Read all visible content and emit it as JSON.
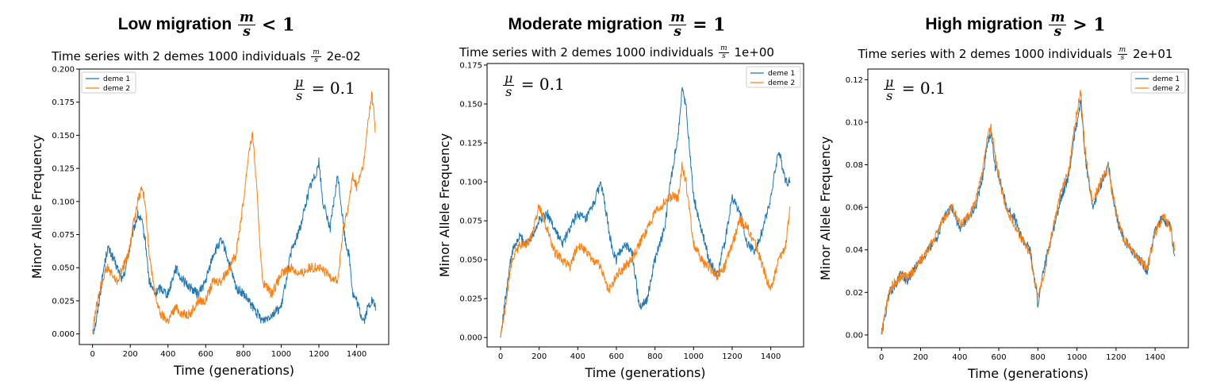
{
  "panels": [
    {
      "title": "Low migration",
      "title_op": "< 1",
      "subtitle_pre": "Time series with 2 demes 1000 individuals",
      "subtitle_val": "2e-02",
      "annotation_val": "= 0.1"
    },
    {
      "title": "Moderate migration",
      "title_op": "= 1",
      "subtitle_pre": "Time series with 2 demes 1000 individuals",
      "subtitle_val": "1e+00",
      "annotation_val": "= 0.1"
    },
    {
      "title": "High migration",
      "title_op": "> 1",
      "subtitle_pre": "Time series with 2 demes 1000 individuals",
      "subtitle_val": "2e+01",
      "annotation_val": "= 0.1"
    }
  ],
  "symbols": {
    "m": "m",
    "s": "s",
    "mu": "μ"
  },
  "colors": {
    "deme1": "#1f77b4",
    "deme2": "#ff7f0e"
  },
  "chart_data": [
    {
      "type": "line",
      "xlabel": "Time (generations)",
      "ylabel": "Minor Allele Frequency",
      "xlim": [
        -70,
        1570
      ],
      "ylim": [
        -0.008,
        0.2
      ],
      "xticks": [
        0,
        200,
        400,
        600,
        800,
        1000,
        1200,
        1400
      ],
      "yticks": [
        0.0,
        0.025,
        0.05,
        0.075,
        0.1,
        0.125,
        0.15,
        0.175,
        0.2
      ],
      "ytick_format": 3,
      "legend": "top-left",
      "series": [
        {
          "name": "deme 1",
          "x": [
            0,
            20,
            40,
            60,
            80,
            100,
            130,
            160,
            190,
            220,
            240,
            260,
            280,
            300,
            330,
            360,
            400,
            440,
            480,
            520,
            560,
            600,
            640,
            680,
            700,
            730,
            760,
            800,
            850,
            900,
            950,
            1000,
            1050,
            1100,
            1150,
            1180,
            1200,
            1220,
            1260,
            1300,
            1340,
            1360,
            1380,
            1400,
            1420,
            1440,
            1460,
            1480,
            1500
          ],
          "values": [
            0.0,
            0.01,
            0.03,
            0.05,
            0.065,
            0.06,
            0.05,
            0.04,
            0.06,
            0.08,
            0.09,
            0.085,
            0.07,
            0.04,
            0.03,
            0.035,
            0.03,
            0.05,
            0.04,
            0.035,
            0.03,
            0.04,
            0.06,
            0.07,
            0.065,
            0.05,
            0.035,
            0.03,
            0.02,
            0.01,
            0.015,
            0.02,
            0.06,
            0.08,
            0.11,
            0.12,
            0.13,
            0.1,
            0.08,
            0.12,
            0.07,
            0.06,
            0.03,
            0.025,
            0.015,
            0.01,
            0.02,
            0.025,
            0.02
          ]
        },
        {
          "name": "deme 2",
          "x": [
            0,
            20,
            40,
            60,
            80,
            100,
            130,
            160,
            190,
            220,
            240,
            260,
            280,
            300,
            330,
            360,
            400,
            440,
            480,
            520,
            560,
            600,
            640,
            680,
            700,
            730,
            760,
            800,
            830,
            850,
            870,
            900,
            950,
            1000,
            1050,
            1100,
            1150,
            1200,
            1250,
            1300,
            1330,
            1360,
            1380,
            1400,
            1420,
            1440,
            1460,
            1480,
            1490,
            1500
          ],
          "values": [
            0.0,
            0.02,
            0.035,
            0.045,
            0.05,
            0.045,
            0.04,
            0.05,
            0.06,
            0.085,
            0.1,
            0.11,
            0.1,
            0.06,
            0.03,
            0.015,
            0.01,
            0.02,
            0.015,
            0.015,
            0.025,
            0.025,
            0.04,
            0.04,
            0.045,
            0.05,
            0.06,
            0.1,
            0.14,
            0.15,
            0.11,
            0.04,
            0.03,
            0.045,
            0.05,
            0.045,
            0.05,
            0.05,
            0.045,
            0.04,
            0.08,
            0.1,
            0.12,
            0.11,
            0.12,
            0.13,
            0.16,
            0.18,
            0.17,
            0.15
          ]
        }
      ]
    },
    {
      "type": "line",
      "xlabel": "Time (generations)",
      "ylabel": "Minor Allele Frequency",
      "xlim": [
        -70,
        1570
      ],
      "ylim": [
        -0.006,
        0.176
      ],
      "xticks": [
        0,
        200,
        400,
        600,
        800,
        1000,
        1200,
        1400
      ],
      "yticks": [
        0.0,
        0.025,
        0.05,
        0.075,
        0.1,
        0.125,
        0.15,
        0.175
      ],
      "ytick_format": 3,
      "legend": "top-right",
      "series": [
        {
          "name": "deme 1",
          "x": [
            0,
            20,
            40,
            60,
            80,
            100,
            130,
            160,
            200,
            240,
            280,
            320,
            360,
            400,
            440,
            480,
            520,
            560,
            580,
            600,
            640,
            680,
            720,
            760,
            800,
            850,
            880,
            920,
            940,
            960,
            980,
            1000,
            1040,
            1080,
            1120,
            1160,
            1200,
            1240,
            1280,
            1320,
            1360,
            1400,
            1440,
            1480,
            1500
          ],
          "values": [
            0.0,
            0.02,
            0.04,
            0.055,
            0.06,
            0.065,
            0.06,
            0.065,
            0.075,
            0.08,
            0.07,
            0.06,
            0.07,
            0.08,
            0.075,
            0.085,
            0.1,
            0.07,
            0.055,
            0.05,
            0.06,
            0.055,
            0.02,
            0.025,
            0.05,
            0.07,
            0.1,
            0.13,
            0.16,
            0.15,
            0.12,
            0.09,
            0.07,
            0.05,
            0.04,
            0.06,
            0.09,
            0.08,
            0.06,
            0.055,
            0.07,
            0.09,
            0.12,
            0.1,
            0.1
          ]
        },
        {
          "name": "deme 2",
          "x": [
            0,
            20,
            40,
            60,
            80,
            100,
            130,
            160,
            200,
            240,
            280,
            320,
            360,
            400,
            440,
            480,
            520,
            560,
            600,
            640,
            680,
            720,
            760,
            800,
            840,
            880,
            920,
            940,
            960,
            1000,
            1040,
            1080,
            1120,
            1160,
            1200,
            1240,
            1280,
            1320,
            1360,
            1400,
            1440,
            1480,
            1500
          ],
          "values": [
            0.0,
            0.015,
            0.035,
            0.05,
            0.055,
            0.06,
            0.06,
            0.065,
            0.085,
            0.07,
            0.055,
            0.05,
            0.045,
            0.06,
            0.055,
            0.05,
            0.045,
            0.03,
            0.04,
            0.045,
            0.05,
            0.06,
            0.07,
            0.08,
            0.085,
            0.09,
            0.09,
            0.11,
            0.1,
            0.06,
            0.05,
            0.045,
            0.04,
            0.045,
            0.06,
            0.075,
            0.07,
            0.06,
            0.045,
            0.03,
            0.05,
            0.06,
            0.085
          ]
        }
      ]
    },
    {
      "type": "line",
      "xlabel": "Time (generations)",
      "ylabel": "Minor Allele Frequency",
      "xlim": [
        -70,
        1570
      ],
      "ylim": [
        -0.006,
        0.125
      ],
      "xticks": [
        0,
        200,
        400,
        600,
        800,
        1000,
        1200,
        1400
      ],
      "yticks": [
        0.0,
        0.02,
        0.04,
        0.06,
        0.08,
        0.1,
        0.12
      ],
      "ytick_format": 2,
      "legend": "top-right",
      "series": [
        {
          "name": "deme 1",
          "x": [
            0,
            20,
            40,
            60,
            80,
            100,
            130,
            160,
            200,
            240,
            280,
            320,
            360,
            400,
            440,
            480,
            520,
            540,
            560,
            580,
            600,
            640,
            680,
            720,
            760,
            800,
            840,
            880,
            920,
            960,
            980,
            1000,
            1020,
            1040,
            1080,
            1120,
            1160,
            1200,
            1240,
            1280,
            1320,
            1360,
            1400,
            1440,
            1480,
            1500
          ],
          "values": [
            0.0,
            0.01,
            0.02,
            0.022,
            0.025,
            0.03,
            0.025,
            0.03,
            0.035,
            0.04,
            0.045,
            0.055,
            0.06,
            0.05,
            0.055,
            0.06,
            0.075,
            0.09,
            0.095,
            0.08,
            0.075,
            0.06,
            0.055,
            0.045,
            0.04,
            0.015,
            0.035,
            0.05,
            0.065,
            0.075,
            0.09,
            0.1,
            0.11,
            0.085,
            0.06,
            0.07,
            0.08,
            0.055,
            0.045,
            0.04,
            0.035,
            0.03,
            0.05,
            0.055,
            0.05,
            0.035
          ]
        },
        {
          "name": "deme 2",
          "x": [
            0,
            20,
            40,
            60,
            80,
            100,
            130,
            160,
            200,
            240,
            280,
            320,
            360,
            400,
            440,
            480,
            520,
            540,
            560,
            580,
            600,
            640,
            680,
            720,
            760,
            800,
            840,
            880,
            920,
            960,
            980,
            1000,
            1020,
            1040,
            1080,
            1120,
            1160,
            1200,
            1240,
            1280,
            1320,
            1360,
            1400,
            1440,
            1480,
            1500
          ],
          "values": [
            0.0,
            0.012,
            0.02,
            0.024,
            0.025,
            0.028,
            0.027,
            0.03,
            0.035,
            0.04,
            0.047,
            0.055,
            0.06,
            0.052,
            0.055,
            0.062,
            0.078,
            0.092,
            0.098,
            0.085,
            0.075,
            0.058,
            0.052,
            0.045,
            0.038,
            0.018,
            0.032,
            0.052,
            0.068,
            0.078,
            0.092,
            0.105,
            0.115,
            0.088,
            0.062,
            0.072,
            0.078,
            0.058,
            0.045,
            0.04,
            0.035,
            0.032,
            0.048,
            0.056,
            0.05,
            0.04
          ]
        }
      ]
    }
  ]
}
